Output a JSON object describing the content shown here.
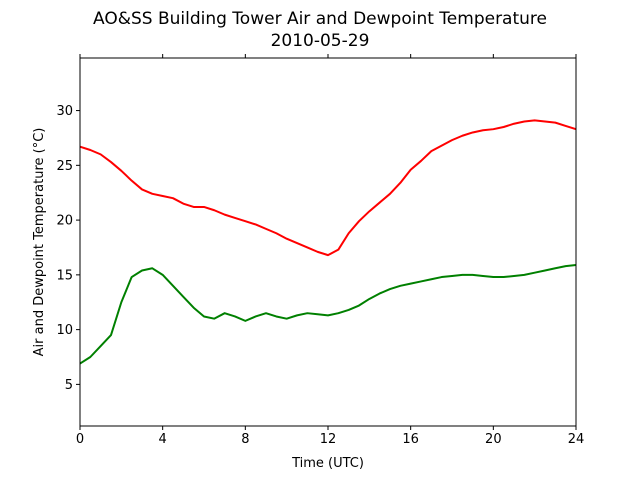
{
  "chart_data": {
    "type": "line",
    "title": "AO&SS Building Tower Air and Dewpoint Temperature",
    "subtitle": "2010-05-29",
    "xlabel": "Time (UTC)",
    "ylabel": "Air and Dewpoint Temperature (°C)",
    "xlim": [
      0,
      24
    ],
    "ylim": [
      1.2,
      34.8
    ],
    "xticks": [
      0,
      4,
      8,
      12,
      16,
      20,
      24
    ],
    "yticks": [
      5,
      10,
      15,
      20,
      25,
      30
    ],
    "grid": false,
    "legend": "none",
    "series": [
      {
        "color": "#ff0000",
        "x": [
          0,
          0.5,
          1,
          1.5,
          2,
          2.5,
          3,
          3.5,
          4,
          4.5,
          5,
          5.5,
          6,
          6.5,
          7,
          7.5,
          8,
          8.5,
          9,
          9.5,
          10,
          10.5,
          11,
          11.5,
          12,
          12.5,
          13,
          13.5,
          14,
          14.5,
          15,
          15.5,
          16,
          16.5,
          17,
          17.5,
          18,
          18.5,
          19,
          19.5,
          20,
          20.5,
          21,
          21.5,
          22,
          22.5,
          23,
          23.5,
          24
        ],
        "values": [
          26.7,
          26.4,
          26.0,
          25.3,
          24.5,
          23.6,
          22.8,
          22.4,
          22.2,
          22.0,
          21.5,
          21.2,
          21.2,
          20.9,
          20.5,
          20.2,
          19.9,
          19.6,
          19.2,
          18.8,
          18.3,
          17.9,
          17.5,
          17.1,
          16.8,
          17.3,
          18.8,
          19.9,
          20.8,
          21.6,
          22.4,
          23.4,
          24.6,
          25.4,
          26.3,
          26.8,
          27.3,
          27.7,
          28.0,
          28.2,
          28.3,
          28.5,
          28.8,
          29.0,
          29.1,
          29.0,
          28.9,
          28.6,
          28.3
        ]
      },
      {
        "color": "#008000",
        "x": [
          0,
          0.5,
          1,
          1.5,
          2,
          2.5,
          3,
          3.5,
          4,
          4.5,
          5,
          5.5,
          6,
          6.5,
          7,
          7.5,
          8,
          8.5,
          9,
          9.5,
          10,
          10.5,
          11,
          11.5,
          12,
          12.5,
          13,
          13.5,
          14,
          14.5,
          15,
          15.5,
          16,
          16.5,
          17,
          17.5,
          18,
          18.5,
          19,
          19.5,
          20,
          20.5,
          21,
          21.5,
          22,
          22.5,
          23,
          23.5,
          24
        ],
        "values": [
          6.9,
          7.5,
          8.5,
          9.5,
          12.5,
          14.8,
          15.4,
          15.6,
          15.0,
          14.0,
          13.0,
          12.0,
          11.2,
          11.0,
          11.5,
          11.2,
          10.8,
          11.2,
          11.5,
          11.2,
          11.0,
          11.3,
          11.5,
          11.4,
          11.3,
          11.5,
          11.8,
          12.2,
          12.8,
          13.3,
          13.7,
          14.0,
          14.2,
          14.4,
          14.6,
          14.8,
          14.9,
          15.0,
          15.0,
          14.9,
          14.8,
          14.8,
          14.9,
          15.0,
          15.2,
          15.4,
          15.6,
          15.8,
          15.9
        ]
      }
    ]
  }
}
